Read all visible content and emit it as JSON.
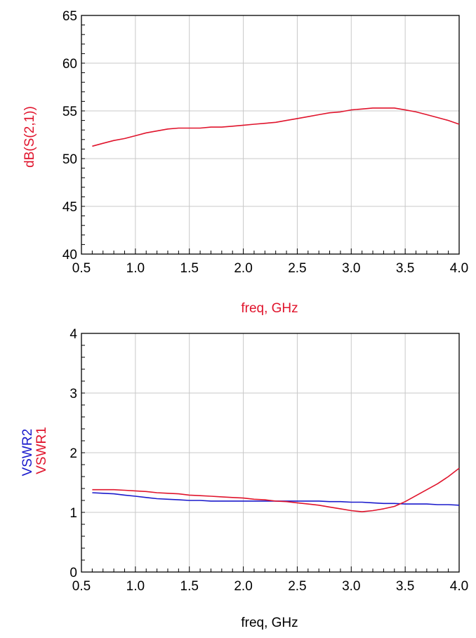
{
  "chart_data": [
    {
      "type": "line",
      "xlabel": "freq, GHz",
      "xlabel_color": "#e0142c",
      "xlim": [
        0.5,
        4.0
      ],
      "xticks": [
        "0.5",
        "1.0",
        "1.5",
        "2.0",
        "2.5",
        "3.0",
        "3.5",
        "4.0"
      ],
      "ylim": [
        40,
        65
      ],
      "yticks": [
        "40",
        "45",
        "50",
        "55",
        "60",
        "65"
      ],
      "grid": true,
      "series": [
        {
          "name": "dB(S(2,1))",
          "color": "#e0142c",
          "x": [
            0.6,
            0.7,
            0.8,
            0.9,
            1.0,
            1.1,
            1.2,
            1.3,
            1.4,
            1.5,
            1.6,
            1.7,
            1.8,
            1.9,
            2.0,
            2.1,
            2.2,
            2.3,
            2.4,
            2.5,
            2.6,
            2.7,
            2.8,
            2.9,
            3.0,
            3.1,
            3.2,
            3.3,
            3.4,
            3.5,
            3.6,
            3.7,
            3.8,
            3.9,
            4.0
          ],
          "y": [
            51.3,
            51.6,
            51.9,
            52.1,
            52.4,
            52.7,
            52.9,
            53.1,
            53.2,
            53.2,
            53.2,
            53.3,
            53.3,
            53.4,
            53.5,
            53.6,
            53.7,
            53.8,
            54.0,
            54.2,
            54.4,
            54.6,
            54.8,
            54.9,
            55.1,
            55.2,
            55.3,
            55.3,
            55.3,
            55.1,
            54.9,
            54.6,
            54.3,
            54.0,
            53.6
          ]
        }
      ]
    },
    {
      "type": "line",
      "xlabel": "freq, GHz",
      "xlabel_color": "#000000",
      "xlim": [
        0.5,
        4.0
      ],
      "xticks": [
        "0.5",
        "1.0",
        "1.5",
        "2.0",
        "2.5",
        "3.0",
        "3.5",
        "4.0"
      ],
      "ylim": [
        0,
        4
      ],
      "yticks": [
        "0",
        "1",
        "2",
        "3",
        "4"
      ],
      "grid": true,
      "ylabel_lines": [
        "VSWR2",
        "VSWR1"
      ],
      "series": [
        {
          "name": "VSWR2",
          "color": "#1a1acc",
          "x": [
            0.6,
            0.7,
            0.8,
            0.9,
            1.0,
            1.1,
            1.2,
            1.3,
            1.4,
            1.5,
            1.6,
            1.7,
            1.8,
            1.9,
            2.0,
            2.1,
            2.2,
            2.3,
            2.4,
            2.5,
            2.6,
            2.7,
            2.8,
            2.9,
            3.0,
            3.1,
            3.2,
            3.3,
            3.4,
            3.5,
            3.6,
            3.7,
            3.8,
            3.9,
            4.0
          ],
          "y": [
            1.33,
            1.32,
            1.31,
            1.29,
            1.27,
            1.25,
            1.23,
            1.22,
            1.21,
            1.2,
            1.2,
            1.19,
            1.19,
            1.19,
            1.19,
            1.19,
            1.19,
            1.19,
            1.19,
            1.19,
            1.19,
            1.19,
            1.18,
            1.18,
            1.17,
            1.17,
            1.16,
            1.15,
            1.15,
            1.14,
            1.14,
            1.14,
            1.13,
            1.13,
            1.12
          ]
        },
        {
          "name": "VSWR1",
          "color": "#e0142c",
          "x": [
            0.6,
            0.7,
            0.8,
            0.9,
            1.0,
            1.1,
            1.2,
            1.3,
            1.4,
            1.5,
            1.6,
            1.7,
            1.8,
            1.9,
            2.0,
            2.1,
            2.2,
            2.3,
            2.4,
            2.5,
            2.6,
            2.7,
            2.8,
            2.9,
            3.0,
            3.1,
            3.2,
            3.3,
            3.4,
            3.5,
            3.6,
            3.7,
            3.8,
            3.9,
            4.0
          ],
          "y": [
            1.38,
            1.38,
            1.38,
            1.37,
            1.36,
            1.35,
            1.33,
            1.32,
            1.31,
            1.29,
            1.28,
            1.27,
            1.26,
            1.25,
            1.24,
            1.22,
            1.21,
            1.19,
            1.18,
            1.16,
            1.14,
            1.12,
            1.09,
            1.06,
            1.03,
            1.01,
            1.03,
            1.06,
            1.1,
            1.18,
            1.28,
            1.38,
            1.48,
            1.6,
            1.74
          ]
        }
      ]
    }
  ]
}
